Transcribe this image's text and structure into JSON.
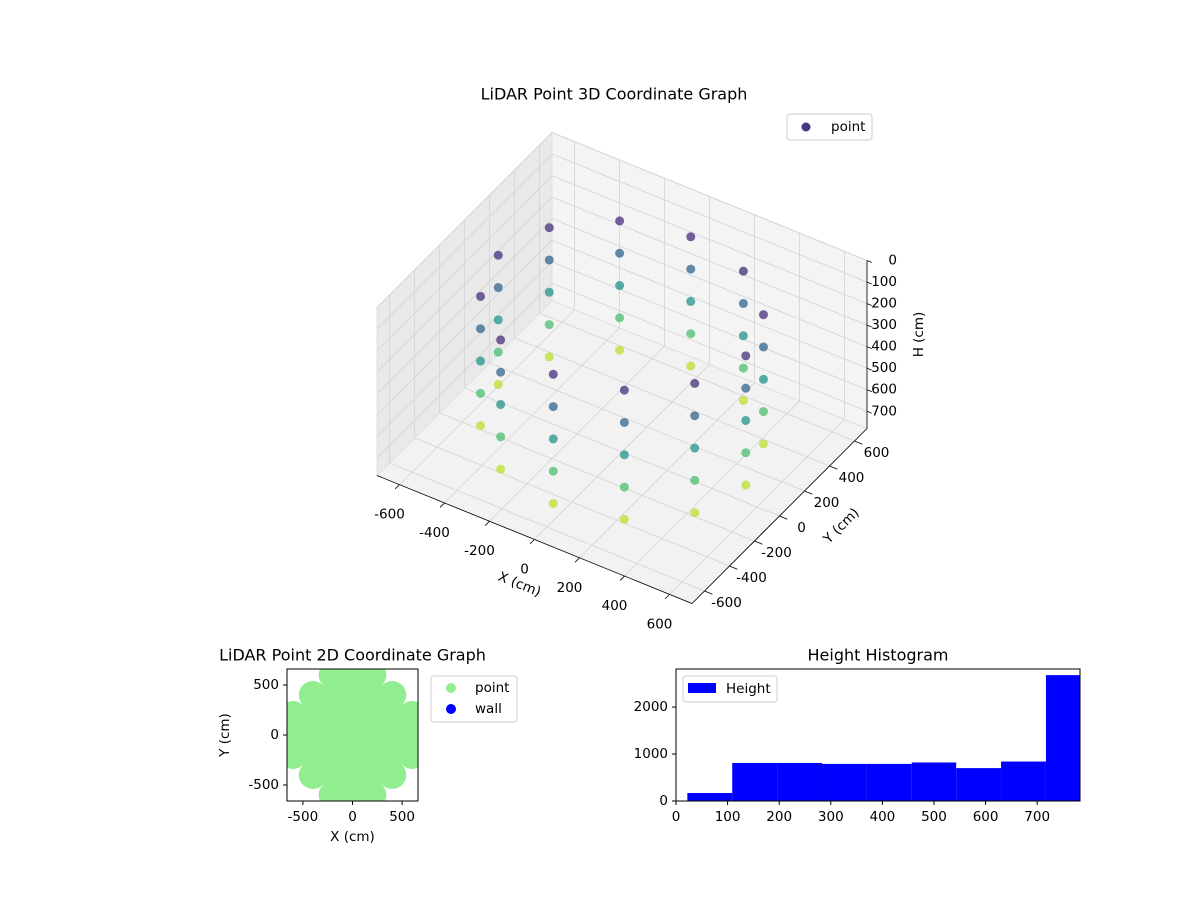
{
  "chart_data": [
    {
      "type": "scatter3d",
      "title": "LiDAR Point 3D Coordinate Graph",
      "x_label": "X (cm)",
      "y_label": "Y (cm)",
      "z_label": "H (cm)",
      "xlim": [
        -700,
        700
      ],
      "ylim": [
        -700,
        700
      ],
      "zlim": [
        0,
        780
      ],
      "zinvert": true,
      "xticks": [
        -600,
        -400,
        -200,
        0,
        200,
        400,
        600
      ],
      "yticks": [
        -600,
        -400,
        -200,
        0,
        200,
        400,
        600
      ],
      "zticks": [
        0,
        100,
        200,
        300,
        400,
        500,
        600,
        700
      ],
      "colormap": "viridis",
      "legend": "upper right",
      "legend_color": "#453781",
      "series": [
        {
          "name": "point",
          "x": [
            550,
            476,
            275,
            0,
            -275,
            -476,
            -550,
            -476,
            -275,
            0,
            275,
            476,
            550,
            476,
            275,
            0,
            -275,
            -476,
            -550,
            -476,
            -275,
            0,
            275,
            476,
            550,
            476,
            275,
            0,
            -275,
            -476,
            -550,
            -476,
            -275,
            0,
            275,
            476,
            550,
            476,
            275,
            0,
            -275,
            -476,
            -550,
            -476,
            -275,
            0,
            275,
            476,
            550,
            476,
            275,
            0,
            -275,
            -476,
            -550,
            -476,
            -275,
            0,
            275,
            476
          ],
          "y": [
            0,
            275,
            476,
            550,
            476,
            275,
            0,
            -275,
            -476,
            -550,
            -476,
            -275,
            0,
            275,
            476,
            550,
            476,
            275,
            0,
            -275,
            -476,
            -550,
            -476,
            -275,
            0,
            275,
            476,
            550,
            476,
            275,
            0,
            -275,
            -476,
            -550,
            -476,
            -275,
            0,
            275,
            476,
            550,
            476,
            275,
            0,
            -275,
            -476,
            -550,
            -476,
            -275,
            0,
            275,
            476,
            550,
            476,
            275,
            0,
            -275,
            -476,
            -550,
            -476,
            -275
          ],
          "z": [
            100,
            100,
            100,
            100,
            100,
            100,
            100,
            100,
            100,
            100,
            100,
            100,
            250,
            250,
            250,
            250,
            250,
            250,
            250,
            250,
            250,
            250,
            250,
            250,
            400,
            400,
            400,
            400,
            400,
            400,
            400,
            400,
            400,
            400,
            400,
            400,
            550,
            550,
            550,
            550,
            550,
            550,
            550,
            550,
            550,
            550,
            550,
            550,
            700,
            700,
            700,
            700,
            700,
            700,
            700,
            700,
            700,
            700,
            700,
            700
          ]
        }
      ]
    },
    {
      "type": "scatter",
      "title": "LiDAR Point 2D Coordinate Graph",
      "x_label": "X (cm)",
      "y_label": "Y (cm)",
      "xlim": [
        -660,
        660
      ],
      "ylim": [
        -660,
        660
      ],
      "xticks": [
        -500,
        0,
        500
      ],
      "yticks": [
        -500,
        0,
        500
      ],
      "legend": "outside right",
      "series": [
        {
          "name": "point",
          "color": "#90ee90",
          "x": [
            -200,
            0,
            200,
            -400,
            -200,
            0,
            200,
            400,
            -600,
            -400,
            -200,
            0,
            200,
            400,
            600,
            -600,
            -400,
            -200,
            0,
            200,
            400,
            600,
            -600,
            -400,
            -200,
            0,
            200,
            400,
            600,
            -400,
            -200,
            0,
            200,
            400,
            -200,
            0,
            200
          ],
          "y": [
            -600,
            -600,
            -600,
            -400,
            -400,
            -400,
            -400,
            -400,
            -200,
            -200,
            -200,
            -200,
            -200,
            -200,
            -200,
            0,
            0,
            0,
            0,
            0,
            0,
            0,
            200,
            200,
            200,
            200,
            200,
            200,
            200,
            400,
            400,
            400,
            400,
            400,
            600,
            600,
            600
          ]
        },
        {
          "name": "wall",
          "color": "#0000ff",
          "x": [],
          "y": []
        }
      ]
    },
    {
      "type": "histogram",
      "title": "Height Histogram",
      "name": "Height",
      "color": "#0000ff",
      "bins": [
        22,
        109,
        196,
        283,
        370,
        457,
        543,
        630,
        717,
        783
      ],
      "counts": [
        170,
        810,
        810,
        790,
        790,
        820,
        700,
        840,
        2680
      ],
      "xlim": [
        0,
        783
      ],
      "ylim": [
        0,
        2810
      ],
      "xticks": [
        0,
        100,
        200,
        300,
        400,
        500,
        600,
        700
      ],
      "yticks": [
        0,
        1000,
        2000
      ],
      "legend": "upper left"
    }
  ]
}
